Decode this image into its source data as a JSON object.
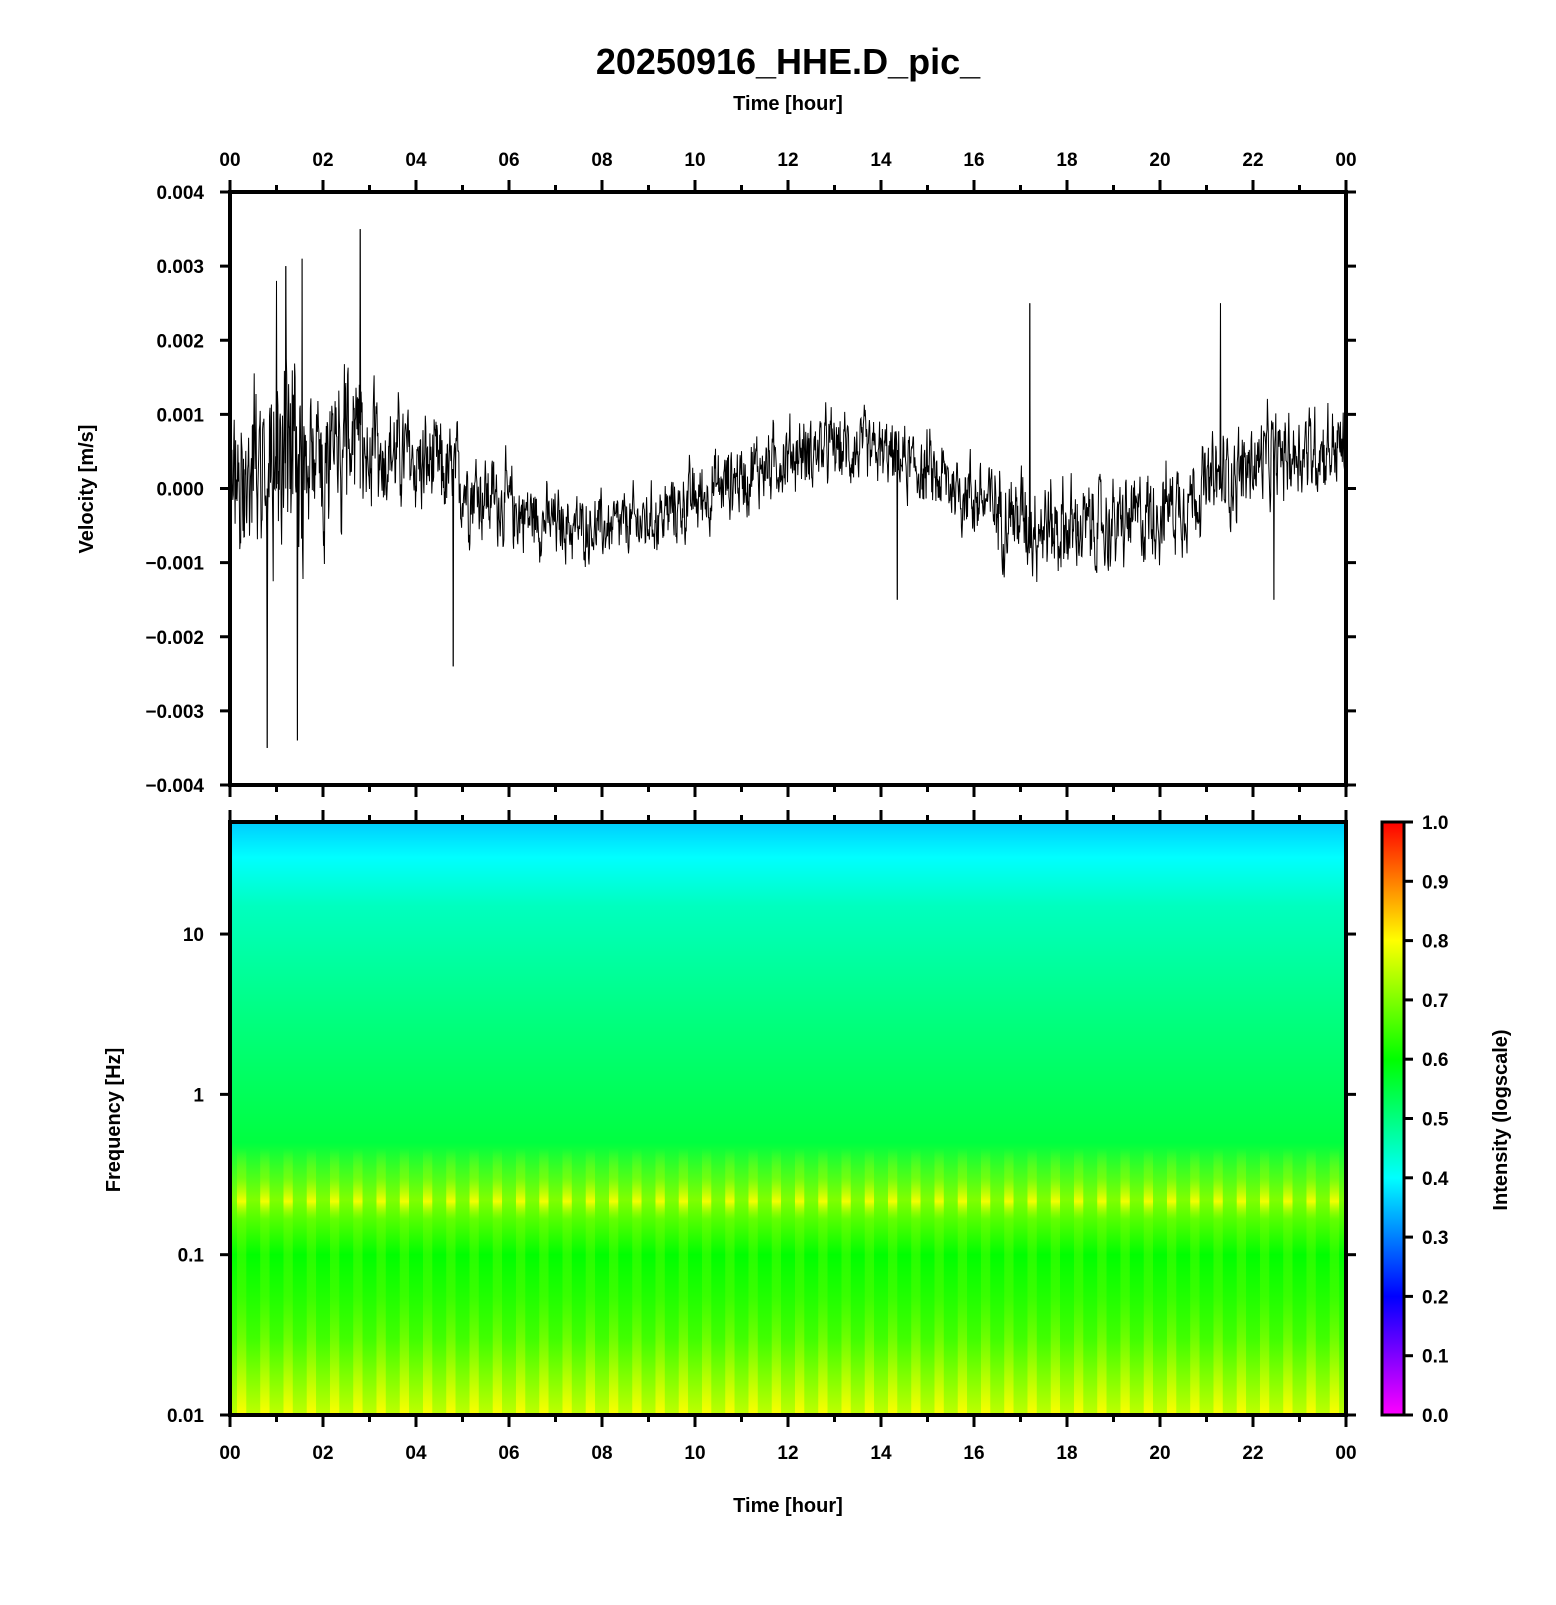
{
  "chart_data": [
    {
      "type": "line",
      "title": "20250916_HHE.D_pic_",
      "x_axis_top_label": "Time [hour]",
      "ylabel": "Velocity [m/s]",
      "x_tick_labels": [
        "00",
        "02",
        "04",
        "06",
        "08",
        "10",
        "12",
        "14",
        "16",
        "18",
        "20",
        "22",
        "00"
      ],
      "xlim_hours": [
        0,
        24
      ],
      "ylim": [
        -0.004,
        0.004
      ],
      "y_tick_labels": [
        "0.004",
        "0.003",
        "0.002",
        "0.001",
        "0.000",
        "−0.001",
        "−0.002",
        "−0.003",
        "−0.004"
      ],
      "y_ticks": [
        0.004,
        0.003,
        0.002,
        0.001,
        0.0,
        -0.001,
        -0.002,
        -0.003,
        -0.004
      ],
      "series": [
        {
          "color": "#000000",
          "envelope_hours": [
            0,
            1,
            2,
            3,
            4,
            5,
            6,
            7,
            8,
            9,
            10,
            11,
            12,
            13,
            14,
            15,
            16,
            17,
            18,
            19,
            20,
            21,
            22,
            23,
            24
          ],
          "envelope_amplitude": [
            0.0018,
            0.0028,
            0.0022,
            0.0016,
            0.0014,
            0.0013,
            0.0011,
            0.0009,
            0.0009,
            0.0009,
            0.001,
            0.001,
            0.001,
            0.001,
            0.0009,
            0.001,
            0.0011,
            0.0013,
            0.0013,
            0.0012,
            0.0012,
            0.0012,
            0.0012,
            0.0012,
            0.0012
          ],
          "peaks": [
            {
              "x": 0.8,
              "y": -0.0035
            },
            {
              "x": 1.0,
              "y": 0.0028
            },
            {
              "x": 1.2,
              "y": 0.003
            },
            {
              "x": 1.45,
              "y": -0.0034
            },
            {
              "x": 1.55,
              "y": 0.0031
            },
            {
              "x": 2.8,
              "y": 0.0035
            },
            {
              "x": 4.8,
              "y": -0.0024
            },
            {
              "x": 14.35,
              "y": -0.0015
            },
            {
              "x": 17.2,
              "y": 0.0025
            },
            {
              "x": 21.3,
              "y": 0.0025
            },
            {
              "x": 22.45,
              "y": -0.0015
            }
          ]
        }
      ]
    },
    {
      "type": "heatmap",
      "xlabel": "Time [hour]",
      "ylabel": "Frequency [Hz]",
      "x_tick_labels": [
        "00",
        "02",
        "04",
        "06",
        "08",
        "10",
        "12",
        "14",
        "16",
        "18",
        "20",
        "22",
        "00"
      ],
      "xlim_hours": [
        0,
        24
      ],
      "y_scale": "log",
      "ylim": [
        0.01,
        50
      ],
      "y_ticks": [
        10,
        1,
        0.1,
        0.01
      ],
      "y_tick_labels": [
        "10",
        "1",
        "0.1",
        "0.01"
      ],
      "colorbar": {
        "label": "Intensity (logscale)",
        "range": [
          0.0,
          1.0
        ],
        "tick_labels": [
          "1.0",
          "0.9",
          "0.8",
          "0.7",
          "0.6",
          "0.5",
          "0.4",
          "0.3",
          "0.2",
          "0.1",
          "0.0"
        ],
        "ticks": [
          1.0,
          0.9,
          0.8,
          0.7,
          0.6,
          0.5,
          0.4,
          0.3,
          0.2,
          0.1,
          0.0
        ],
        "colors": [
          "#ff00ff",
          "#0000ff",
          "#00ffff",
          "#00ff00",
          "#ffff00",
          "#ff0000"
        ],
        "color_stops": [
          0.0,
          0.2,
          0.4,
          0.6,
          0.8,
          1.0
        ]
      },
      "intensity_profile": [
        {
          "freq": 50,
          "value": 0.36
        },
        {
          "freq": 30,
          "value": 0.4
        },
        {
          "freq": 15,
          "value": 0.45
        },
        {
          "freq": 3,
          "value": 0.5
        },
        {
          "freq": 0.5,
          "value": 0.55
        },
        {
          "freq": 0.22,
          "value": 0.7
        },
        {
          "freq": 0.1,
          "value": 0.6
        },
        {
          "freq": 0.03,
          "value": 0.65
        },
        {
          "freq": 0.01,
          "value": 0.75
        }
      ],
      "stripe_count": 48
    }
  ]
}
